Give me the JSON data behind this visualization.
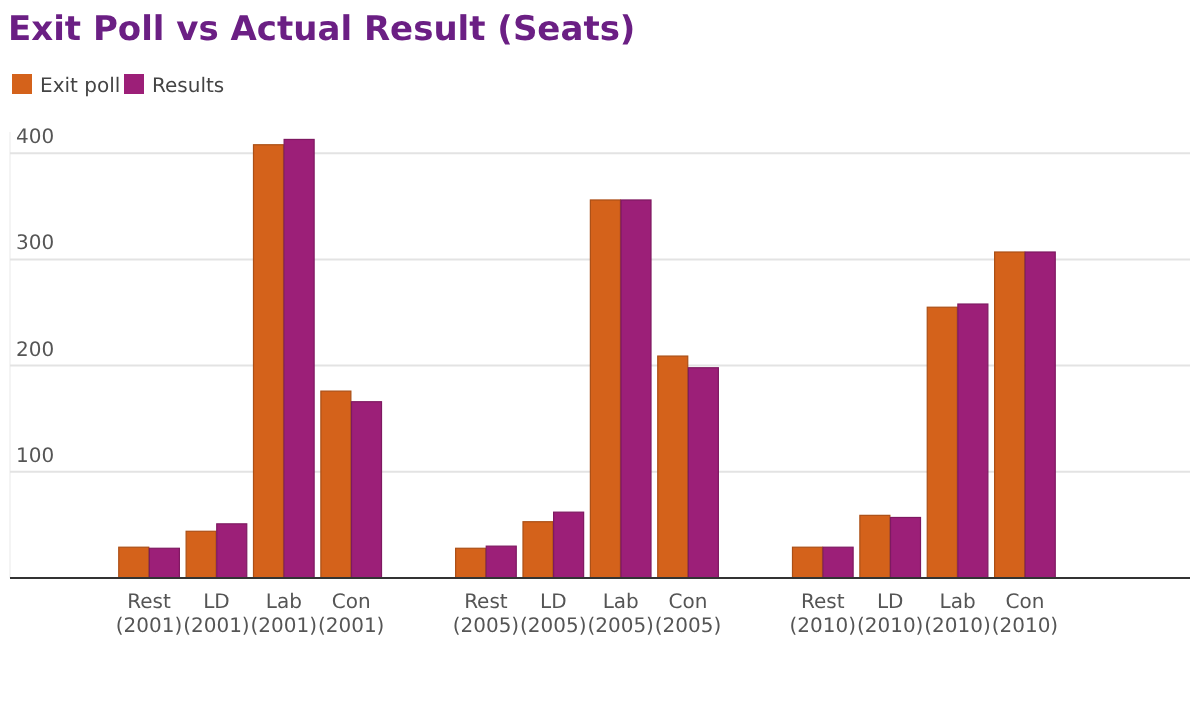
{
  "chart_data": {
    "type": "bar",
    "title": "Exit Poll vs Actual Result (Seats)",
    "categories": [
      null,
      null,
      "Rest (2001)",
      "LD (2001)",
      "Lab (2001)",
      "Con (2001)",
      null,
      "Rest (2005)",
      "LD (2005)",
      "Lab (2005)",
      "Con (2005)",
      null,
      "Rest (2010)",
      "LD (2010)",
      "Lab (2010)",
      "Con (2010)",
      null,
      null
    ],
    "series": [
      {
        "name": "Exit poll",
        "color": "#d4621b",
        "values": [
          null,
          null,
          29,
          44,
          408,
          176,
          null,
          28,
          53,
          356,
          209,
          null,
          29,
          59,
          255,
          307,
          null,
          null
        ]
      },
      {
        "name": "Results",
        "color": "#9c1f78",
        "values": [
          null,
          null,
          28,
          51,
          413,
          166,
          null,
          30,
          62,
          356,
          198,
          null,
          29,
          57,
          258,
          307,
          null,
          null
        ]
      }
    ],
    "ylim": [
      0,
      420
    ],
    "yticks": [
      100,
      200,
      300,
      400
    ],
    "grid": "y",
    "legend": "top left"
  }
}
